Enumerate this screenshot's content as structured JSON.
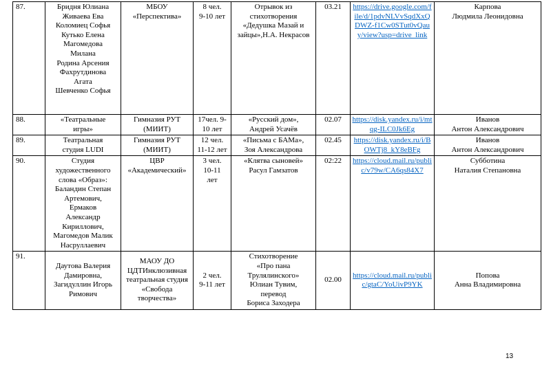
{
  "table": {
    "rows": [
      [
        "87.",
        "Бридня Юлиана\nЖиваева Ева\nКоломиец Софья\nКутько Елена\nМагомедова\nМилана\nРодина Арсения\nФахрутдинова\nАгата\nШевченко Софья",
        "МБОУ\n«Перспектива»",
        "8 чел.\n9-10 лет",
        "Отрывок из\nстихотворения\n«Дедушка Мазай и\nзайцы»,Н.А. Некрасов",
        "03.21",
        "https://drive.google.com/file/d/1pdvNLVvSqdXxQDWZ-f1Cw0STut0vQauy/view?usp=drive_link",
        "Карпова\nЛюдмила Леонидовна"
      ],
      [
        "88.",
        "«Театральные\nигры»",
        "Гимназия РУТ\n(МИИТ)",
        "17чел. 9-\n10 лет",
        "«Русский дом»,\nАндрей Усачёв",
        "02.07",
        "https://disk.yandex.ru/i/mtqg-ILC0Jk6Eg",
        "Иванов\nАнтон Александрович"
      ],
      [
        "89.",
        "Театральная\nстудия LUDI",
        "Гимназия РУТ\n(МИИТ)",
        "12 чел.\n11-12 лет",
        "«Письма с БАМа»,\nЗоя Александрова",
        "02.45",
        "https://disk.yandex.ru/i/BOWTj8_kY8eBFg",
        "Иванов\nАнтон Александрович"
      ],
      [
        "90.",
        "Студия\nхудожественного\nслова «Образ»:\nБаландин Степан\nАртемович,\nЕрмаков\nАлександр\nКириллович,\nМагомедов Малик\nНасруллаевич",
        "ЦВР\n«Академический»",
        "3 чел.\n10-11\nлет",
        "«Клятва сыновей»\nРасул Гамзатов",
        "02:22",
        "https://cloud.mail.ru/public/v79w/CA6qs84X7",
        "Субботина\nНаталия Степановна"
      ],
      [
        "91.",
        "Даутова Валерия\nДамировна,\nЗагидуллин Игорь\nРимович",
        "МАОУ ДО\nЦДТИнклюзивная\nтеатральная студия\n«Свобода\nтворчества»",
        "2 чел.\n9-11 лет",
        "Стихотворение\n«Про пана\nТрулялинского»\nЮлиан Тувим,\nперевод\nБориса Заходера",
        "02.00",
        "https://cloud.mail.ru/public/gtaC/YoUivP9YK",
        "Попова\nАнна Владимировна"
      ]
    ]
  },
  "footer": {
    "page_number": "13"
  }
}
